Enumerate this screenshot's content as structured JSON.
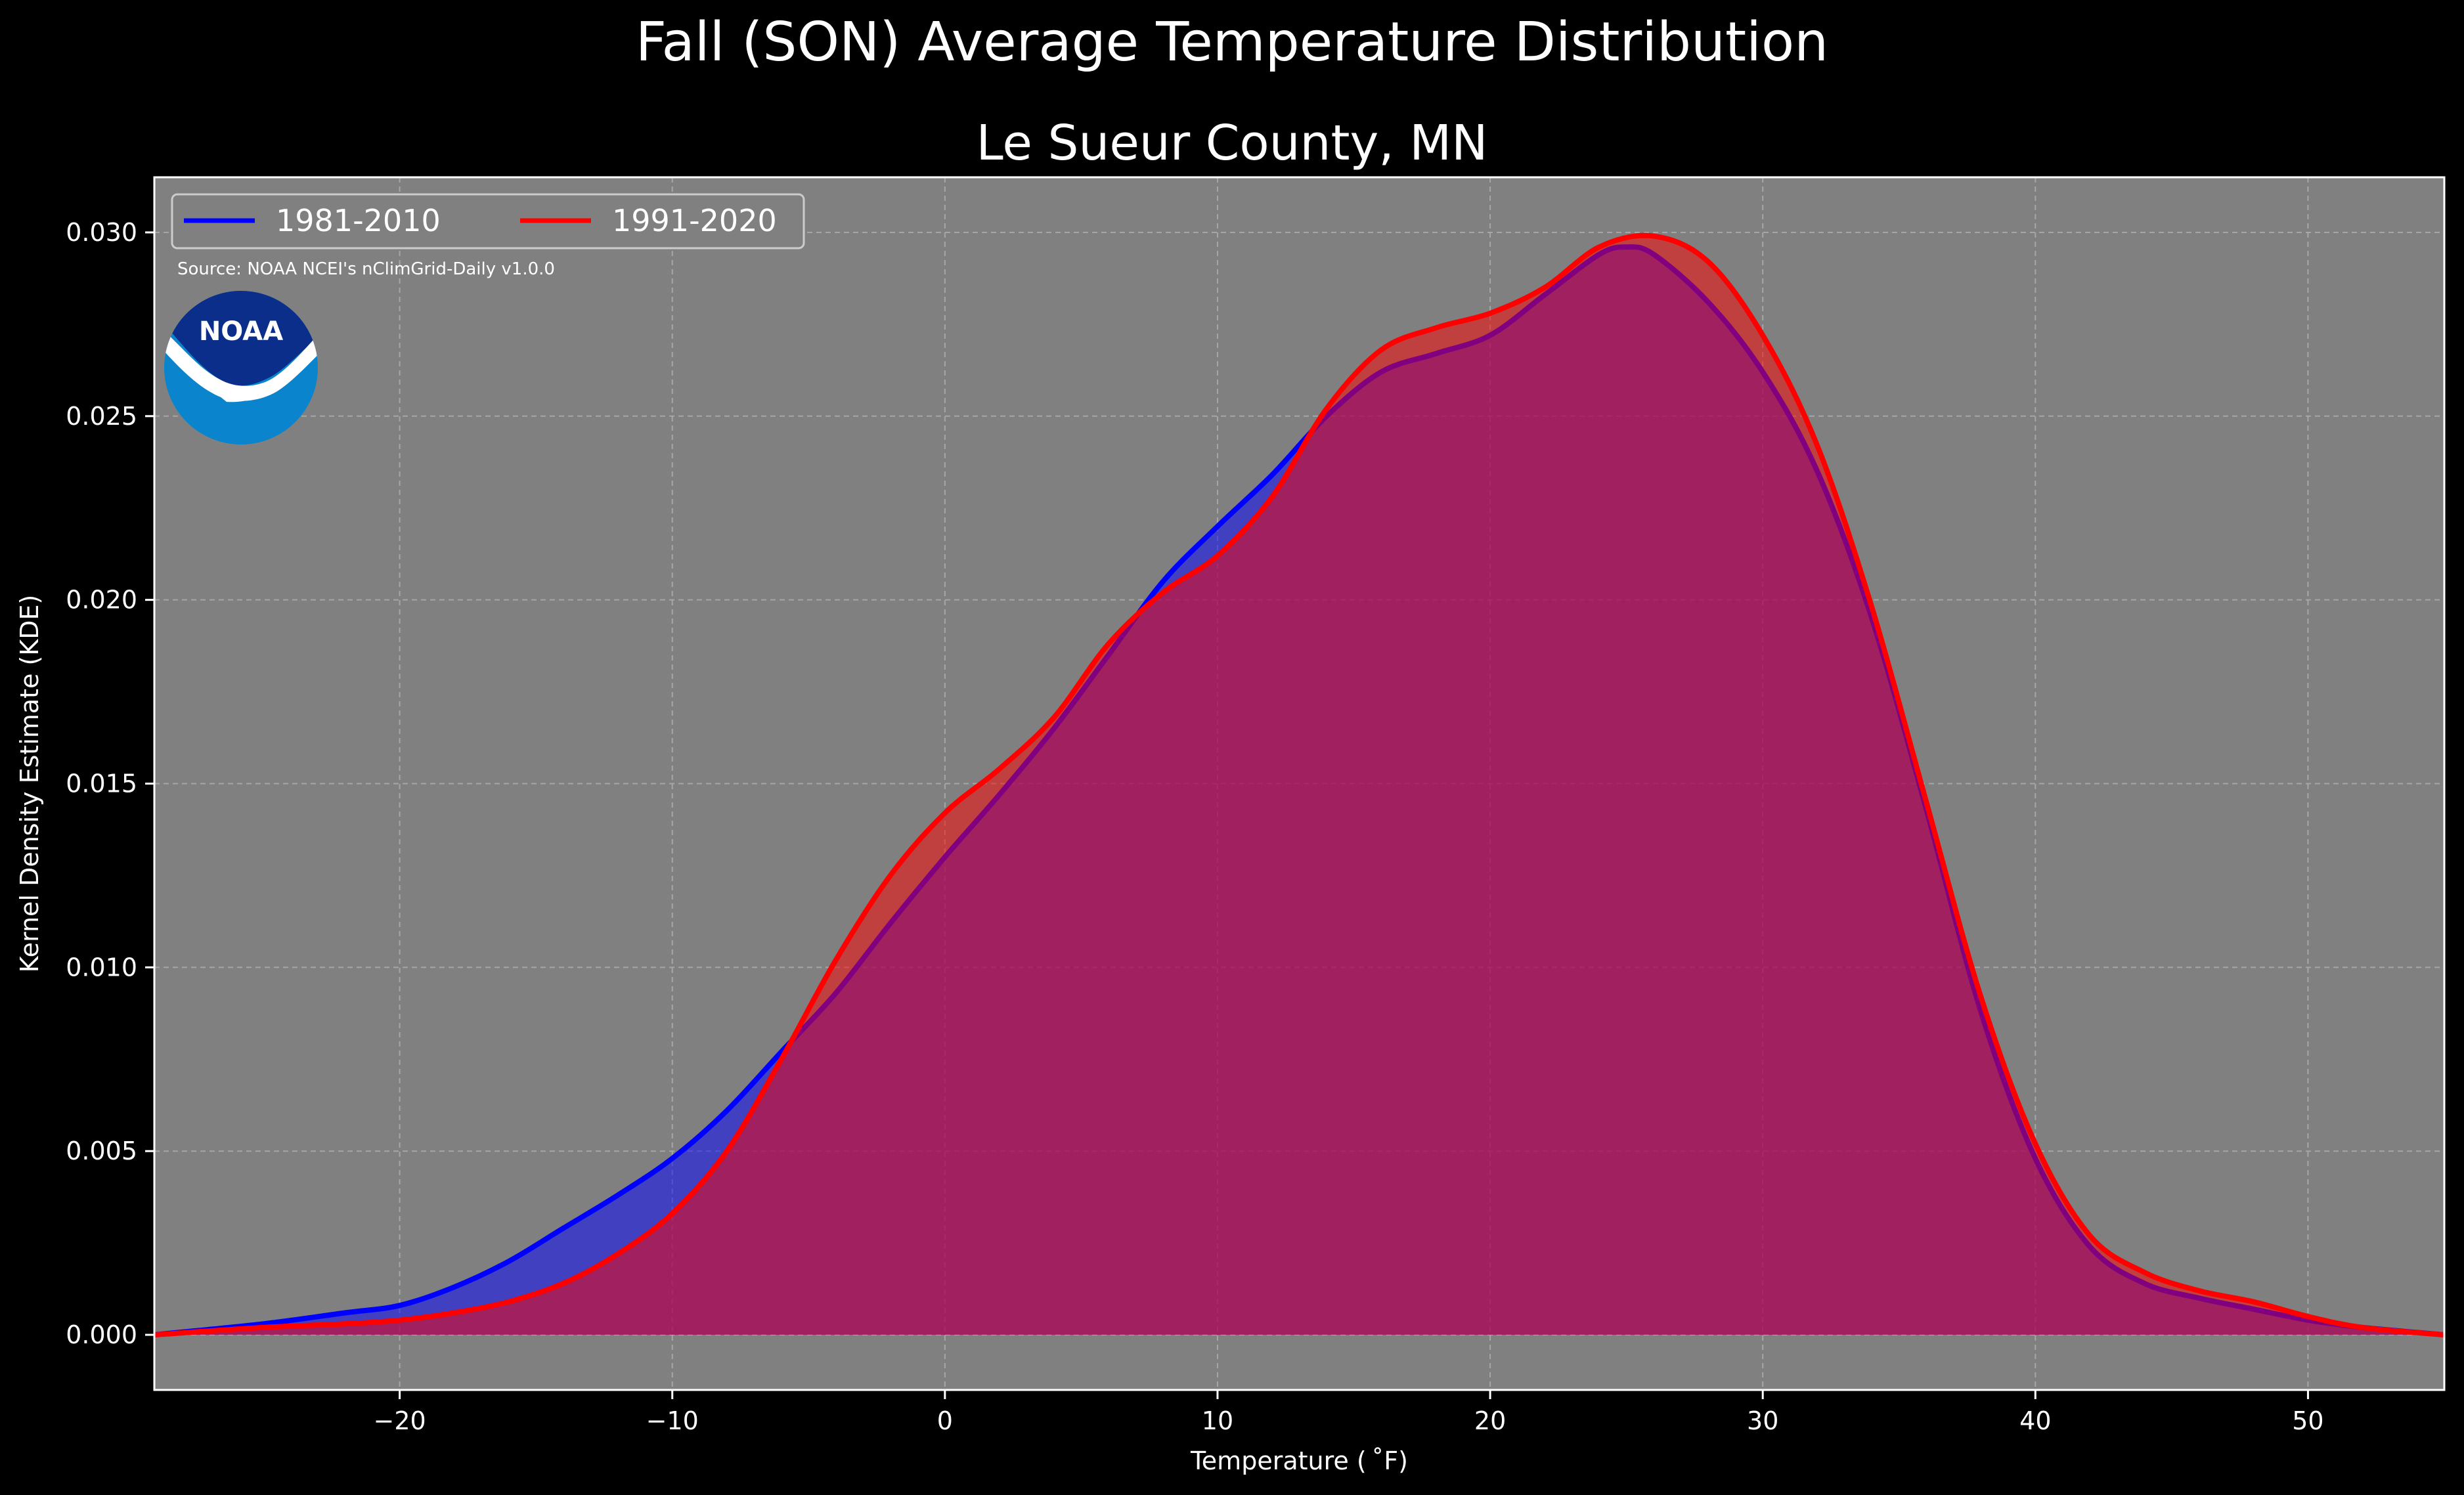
{
  "chart_data": {
    "type": "area",
    "title": "Fall (SON) Average Temperature Distribution",
    "subtitle": "Le Sueur County, MN",
    "xlabel": "Temperature ($^\\circ$F)",
    "ylabel": "Kernel Density Estimate (KDE)",
    "xlim": [
      -29,
      55
    ],
    "ylim": [
      -0.0015,
      0.0315
    ],
    "xticks": [
      -20,
      -10,
      0,
      10,
      20,
      30,
      40,
      50
    ],
    "xtick_labels": [
      "−20",
      "−10",
      "0",
      "10",
      "20",
      "30",
      "40",
      "50"
    ],
    "yticks": [
      0,
      0.005,
      0.01,
      0.015,
      0.02,
      0.025,
      0.03
    ],
    "ytick_labels": [
      "0.000",
      "0.005",
      "0.010",
      "0.015",
      "0.020",
      "0.025",
      "0.030"
    ],
    "grid": true,
    "legend_position": "top-left",
    "annotation": "Source: NOAA NCEI's nClimGrid-Daily v1.0.0",
    "logo_text": "NOAA",
    "colors": {
      "background": "#000000",
      "plot_background": "#808080",
      "text": "#ffffff",
      "logo_dark": "#0a2e8a",
      "logo_light": "#0a84cc"
    },
    "series": [
      {
        "name": "1981-2010",
        "color": "#0000ff",
        "fill": "#0000ff",
        "fill_opacity": 0.5,
        "x": [
          -29,
          -25,
          -22,
          -20,
          -18,
          -16,
          -14,
          -12,
          -10,
          -8,
          -6,
          -4,
          -2,
          0,
          2,
          4,
          6,
          8,
          10,
          12,
          14,
          16,
          18,
          20,
          22,
          24,
          25,
          26,
          28,
          30,
          32,
          34,
          36,
          38,
          40,
          42,
          44,
          46,
          48,
          50,
          52,
          55
        ],
        "y": [
          0.0,
          0.0003,
          0.0006,
          0.0008,
          0.0013,
          0.002,
          0.0029,
          0.0038,
          0.0048,
          0.0061,
          0.0077,
          0.0093,
          0.0112,
          0.013,
          0.0147,
          0.0165,
          0.0185,
          0.0205,
          0.022,
          0.0234,
          0.025,
          0.0262,
          0.0267,
          0.0272,
          0.0283,
          0.0294,
          0.0296,
          0.0294,
          0.0281,
          0.0262,
          0.0235,
          0.0195,
          0.0143,
          0.0088,
          0.0048,
          0.0024,
          0.0014,
          0.001,
          0.0007,
          0.0004,
          0.0002,
          0.0
        ]
      },
      {
        "name": "1991-2020",
        "color": "#ff0000",
        "fill": "#ff0000",
        "fill_opacity": 0.5,
        "x": [
          -29,
          -25,
          -22,
          -20,
          -18,
          -16,
          -14,
          -12,
          -10,
          -8,
          -6,
          -4,
          -2,
          0,
          2,
          4,
          6,
          8,
          10,
          12,
          14,
          16,
          18,
          20,
          22,
          24,
          26,
          28,
          30,
          32,
          34,
          36,
          38,
          40,
          42,
          44,
          46,
          48,
          50,
          52,
          55
        ],
        "y": [
          0.0,
          0.0002,
          0.0003,
          0.0004,
          0.0006,
          0.0009,
          0.0014,
          0.0022,
          0.0033,
          0.005,
          0.0075,
          0.0102,
          0.0125,
          0.0142,
          0.0154,
          0.0168,
          0.0188,
          0.0202,
          0.0212,
          0.0228,
          0.0252,
          0.0268,
          0.0274,
          0.0278,
          0.0285,
          0.0296,
          0.0299,
          0.0292,
          0.0272,
          0.0242,
          0.0198,
          0.0145,
          0.0092,
          0.0052,
          0.0027,
          0.0017,
          0.0012,
          0.0009,
          0.0005,
          0.0002,
          0.0
        ]
      }
    ]
  }
}
